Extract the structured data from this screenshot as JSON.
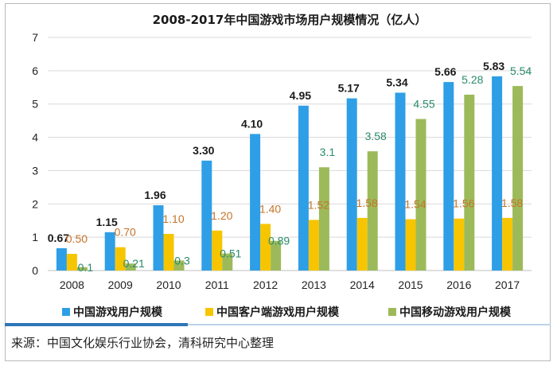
{
  "chart_data": {
    "type": "bar",
    "title": "2008-2017年中国游戏市场用户规模情况（亿人）",
    "categories": [
      "2008",
      "2009",
      "2010",
      "2011",
      "2012",
      "2013",
      "2014",
      "2015",
      "2016",
      "2017"
    ],
    "ylim": [
      0,
      7
    ],
    "yticks": [
      "0",
      "1",
      "2",
      "3",
      "4",
      "5",
      "6",
      "7"
    ],
    "grid": true,
    "legend_position": "bottom",
    "series": [
      {
        "name": "中国游戏用户规模",
        "color": "#2e9fe6",
        "label_color": "#1a1a1a",
        "label_bold": true,
        "values": [
          0.67,
          1.15,
          1.96,
          3.3,
          4.1,
          4.95,
          5.17,
          5.34,
          5.66,
          5.83
        ],
        "labels": [
          "0.67",
          "1.15",
          "1.96",
          "3.30",
          "4.10",
          "4.95",
          "5.17",
          "5.34",
          "5.66",
          "5.83"
        ]
      },
      {
        "name": "中国客户端游戏用户规模",
        "color": "#f7c500",
        "label_color": "#c5742a",
        "label_bold": false,
        "values": [
          0.5,
          0.7,
          1.1,
          1.2,
          1.4,
          1.52,
          1.58,
          1.54,
          1.56,
          1.58
        ],
        "labels": [
          "0.50",
          "0.70",
          "1.10",
          "1.20",
          "1.40",
          "1.52",
          "1.58",
          "1.54",
          "1.56",
          "1.58"
        ]
      },
      {
        "name": "中国移动游戏用户规模",
        "color": "#9cba5a",
        "label_color": "#2a8a6a",
        "label_bold": false,
        "values": [
          0.1,
          0.21,
          0.3,
          0.51,
          0.89,
          3.1,
          3.58,
          4.55,
          5.28,
          5.54
        ],
        "labels": [
          "0.1",
          "0.21",
          "0.3",
          "0.51",
          "0.89",
          "3.1",
          "3.58",
          "4.55",
          "5.28",
          "5.54"
        ]
      }
    ]
  },
  "source": "来源：中国文化娱乐行业协会，清科研究中心整理"
}
